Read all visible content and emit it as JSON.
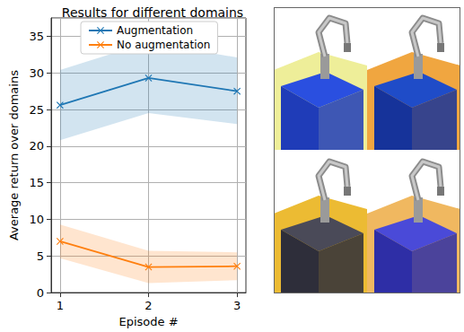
{
  "chart_data": {
    "type": "line",
    "title": "Results for different domains",
    "x_label": "Episode #",
    "y_label": "Average return over domains",
    "x": [
      1,
      2,
      3
    ],
    "series": [
      {
        "name": "Augmentation",
        "color": "#1f77b4",
        "marker": "x",
        "values": [
          25.6,
          29.3,
          27.5
        ],
        "lower": [
          20.8,
          24.5,
          23.0
        ],
        "upper": [
          30.4,
          34.2,
          32.1
        ]
      },
      {
        "name": "No augmentation",
        "color": "#ff7f0e",
        "marker": "x",
        "values": [
          7.0,
          3.5,
          3.6
        ],
        "lower": [
          4.7,
          1.3,
          1.7
        ],
        "upper": [
          9.3,
          5.7,
          5.5
        ]
      }
    ],
    "xlim": [
      0.9,
      3.1
    ],
    "xticks": [
      1,
      2,
      3
    ],
    "ylim": [
      0,
      37.5
    ],
    "yticks": [
      0,
      5,
      10,
      15,
      20,
      25,
      30,
      35
    ],
    "grid": true,
    "legend": "upper left"
  }
}
